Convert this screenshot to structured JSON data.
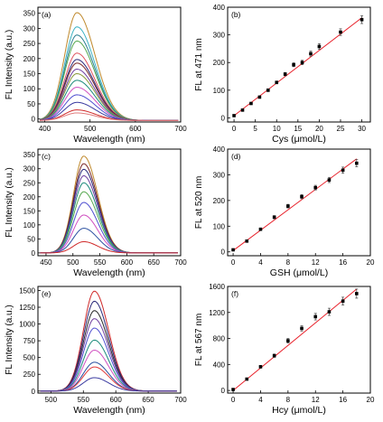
{
  "panels": [
    {
      "id": "a",
      "label": "(a)",
      "type": "line",
      "style": "spectra",
      "xlabel": "Wavelength (nm)",
      "ylabel": "FL Intensity (a.u.)",
      "xlim": [
        385,
        700
      ],
      "ylim": [
        -10,
        370
      ],
      "xticks": [
        400,
        500,
        600,
        700
      ],
      "yticks": [
        0,
        50,
        100,
        150,
        200,
        250,
        300,
        350
      ],
      "peak_x": 471,
      "sigma_left": 27,
      "sigma_right": 40,
      "baseline": -5,
      "series": [
        {
          "peak": 352,
          "color": "#c08a2e"
        },
        {
          "peak": 305,
          "color": "#3cb3c4"
        },
        {
          "peak": 278,
          "color": "#2b7f90"
        },
        {
          "peak": 258,
          "color": "#56a84f"
        },
        {
          "peak": 218,
          "color": "#e05560"
        },
        {
          "peak": 197,
          "color": "#2a2a7a"
        },
        {
          "peak": 185,
          "color": "#7a2a2a"
        },
        {
          "peak": 165,
          "color": "#6f3f9f"
        },
        {
          "peak": 150,
          "color": "#8a9b3a"
        },
        {
          "peak": 128,
          "color": "#1b8a7a"
        },
        {
          "peak": 105,
          "color": "#d04fc0"
        },
        {
          "peak": 80,
          "color": "#4f4fd0"
        },
        {
          "peak": 55,
          "color": "#3a3aa0"
        },
        {
          "peak": 30,
          "color": "#d02a2a"
        },
        {
          "peak": 20,
          "color": "#e07a7a"
        }
      ]
    },
    {
      "id": "b",
      "label": "(b)",
      "type": "scatter",
      "style": "calib",
      "xlabel": "Cys (μmol/L)",
      "ylabel": "FL at 471 nm",
      "xlim": [
        -1.5,
        32
      ],
      "ylim": [
        -15,
        400
      ],
      "xticks": [
        0,
        5,
        10,
        15,
        20,
        25,
        30
      ],
      "yticks": [
        0,
        100,
        200,
        300,
        400
      ],
      "fit_x": [
        0,
        30
      ],
      "fit_y": [
        8,
        362
      ],
      "x": [
        0,
        2,
        4,
        6,
        8,
        10,
        12,
        14,
        16,
        18,
        20,
        25,
        30
      ],
      "y": [
        8,
        28,
        52,
        75,
        100,
        128,
        158,
        192,
        200,
        232,
        258,
        310,
        355
      ],
      "err": [
        3,
        3,
        4,
        4,
        5,
        5,
        6,
        7,
        8,
        9,
        10,
        12,
        14
      ]
    },
    {
      "id": "c",
      "label": "(c)",
      "type": "line",
      "style": "spectra",
      "xlabel": "Wavelength (nm)",
      "ylabel": "FL Intensity (a.u.)",
      "xlim": [
        435,
        700
      ],
      "ylim": [
        -10,
        370
      ],
      "xticks": [
        450,
        500,
        550,
        600,
        650,
        700
      ],
      "yticks": [
        0,
        50,
        100,
        150,
        200,
        250,
        300,
        350
      ],
      "peak_x": 520,
      "sigma_left": 19,
      "sigma_right": 26,
      "baseline": 0,
      "series": [
        {
          "peak": 345,
          "color": "#c08a2e"
        },
        {
          "peak": 318,
          "color": "#7a2a2a"
        },
        {
          "peak": 298,
          "color": "#2a2a7a"
        },
        {
          "peak": 275,
          "color": "#6f3f9f"
        },
        {
          "peak": 250,
          "color": "#1b8a7a"
        },
        {
          "peak": 218,
          "color": "#56a84f"
        },
        {
          "peak": 180,
          "color": "#4f4fd0"
        },
        {
          "peak": 135,
          "color": "#d04fc0"
        },
        {
          "peak": 88,
          "color": "#2a4fa0"
        },
        {
          "peak": 40,
          "color": "#d02a2a"
        }
      ]
    },
    {
      "id": "d",
      "label": "(d)",
      "type": "scatter",
      "style": "calib",
      "xlabel": "GSH (μmol/L)",
      "ylabel": "FL at 520 nm",
      "xlim": [
        -0.8,
        20
      ],
      "ylim": [
        -15,
        400
      ],
      "xticks": [
        0,
        4,
        8,
        12,
        16,
        20
      ],
      "yticks": [
        0,
        100,
        200,
        300,
        400
      ],
      "fit_x": [
        0,
        18
      ],
      "fit_y": [
        5,
        362
      ],
      "x": [
        0,
        2,
        4,
        6,
        8,
        10,
        12,
        14,
        16,
        18
      ],
      "y": [
        8,
        42,
        88,
        135,
        178,
        215,
        250,
        280,
        318,
        345
      ],
      "err": [
        3,
        4,
        5,
        6,
        7,
        8,
        9,
        10,
        12,
        14
      ]
    },
    {
      "id": "e",
      "label": "(e)",
      "type": "line",
      "style": "spectra",
      "xlabel": "Wavelength (nm)",
      "ylabel": "FL Intensity (a.u.)",
      "xlim": [
        480,
        700
      ],
      "ylim": [
        -30,
        1560
      ],
      "xticks": [
        500,
        550,
        600,
        650,
        700
      ],
      "yticks": [
        0,
        250,
        500,
        750,
        1000,
        1250,
        1500
      ],
      "peak_x": 567,
      "sigma_left": 17,
      "sigma_right": 22,
      "baseline": 0,
      "series": [
        {
          "peak": 1490,
          "color": "#d02a2a"
        },
        {
          "peak": 1340,
          "color": "#2a2a7a"
        },
        {
          "peak": 1200,
          "color": "#2a2a2a"
        },
        {
          "peak": 1080,
          "color": "#6f3f9f"
        },
        {
          "peak": 940,
          "color": "#4f4fd0"
        },
        {
          "peak": 760,
          "color": "#1b8a7a"
        },
        {
          "peak": 610,
          "color": "#d04fc0"
        },
        {
          "peak": 430,
          "color": "#2a4fa0"
        },
        {
          "peak": 360,
          "color": "#e03a3a"
        },
        {
          "peak": 200,
          "color": "#3a3aa0"
        }
      ]
    },
    {
      "id": "f",
      "label": "(f)",
      "type": "scatter",
      "style": "calib",
      "xlabel": "Hcy (μmol/L)",
      "ylabel": "FL at 567 nm",
      "xlim": [
        -0.8,
        20
      ],
      "ylim": [
        -40,
        1600
      ],
      "xticks": [
        0,
        4,
        8,
        12,
        16,
        20
      ],
      "yticks": [
        0,
        400,
        800,
        1200,
        1600
      ],
      "fit_x": [
        0,
        18
      ],
      "fit_y": [
        0,
        1560
      ],
      "x": [
        0,
        2,
        4,
        6,
        8,
        10,
        12,
        14,
        16,
        18
      ],
      "y": [
        15,
        175,
        365,
        535,
        765,
        955,
        1135,
        1210,
        1375,
        1490
      ],
      "err": [
        10,
        15,
        20,
        25,
        35,
        40,
        50,
        55,
        60,
        70
      ]
    }
  ]
}
